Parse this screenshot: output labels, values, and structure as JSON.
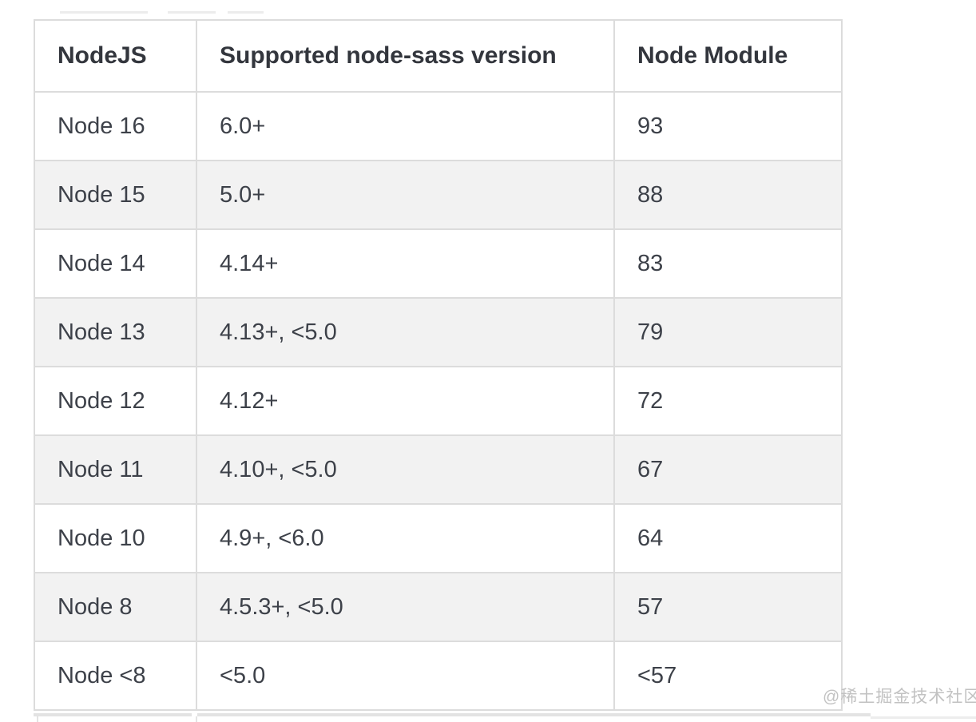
{
  "table": {
    "columns": [
      {
        "label": "NodeJS"
      },
      {
        "label": "Supported node-sass version"
      },
      {
        "label": "Node Module"
      }
    ],
    "rows": [
      {
        "nodejs": "Node 16",
        "sass_version": "6.0+",
        "node_module": "93"
      },
      {
        "nodejs": "Node 15",
        "sass_version": "5.0+",
        "node_module": "88"
      },
      {
        "nodejs": "Node 14",
        "sass_version": "4.14+",
        "node_module": "83"
      },
      {
        "nodejs": "Node 13",
        "sass_version": "4.13+, <5.0",
        "node_module": "79"
      },
      {
        "nodejs": "Node 12",
        "sass_version": "4.12+",
        "node_module": "72"
      },
      {
        "nodejs": "Node 11",
        "sass_version": "4.10+, <5.0",
        "node_module": "67"
      },
      {
        "nodejs": "Node 10",
        "sass_version": "4.9+, <6.0",
        "node_module": "64"
      },
      {
        "nodejs": "Node 8",
        "sass_version": "4.5.3+, <5.0",
        "node_module": "57"
      },
      {
        "nodejs": "Node <8",
        "sass_version": "<5.0",
        "node_module": "<57"
      }
    ]
  },
  "watermark": {
    "text": "@稀土掘金技术社区"
  },
  "colors": {
    "border": "#dcdcdc",
    "row_stripe": "#f2f2f2",
    "body_text": "#3d4149",
    "header_text": "#33363d",
    "watermark_text": "#c2c2c2",
    "background": "#ffffff"
  }
}
